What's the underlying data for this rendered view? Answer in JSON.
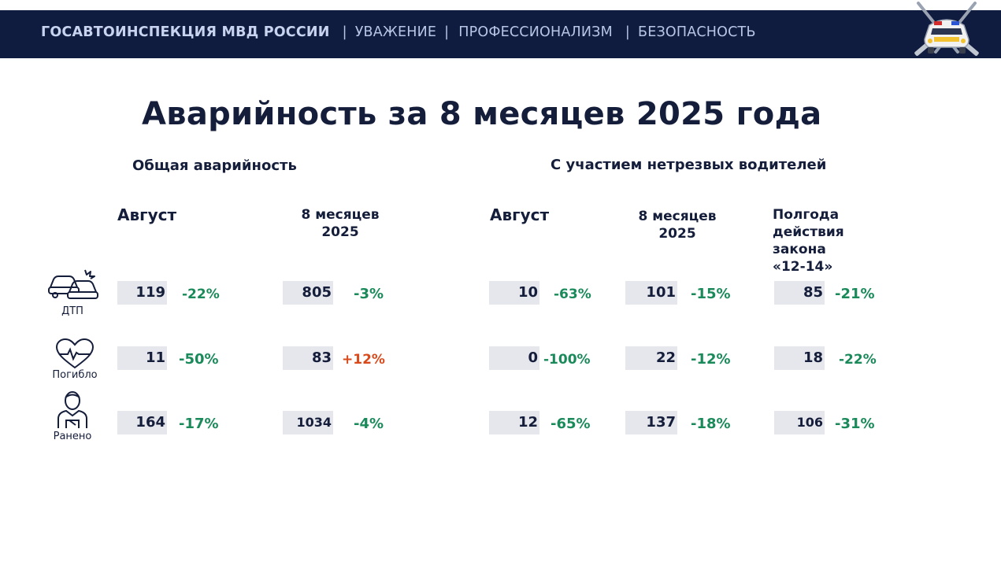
{
  "header": {
    "organization": "ГОСАВТОИНСПЕКЦИЯ МВД РОССИИ",
    "values": [
      "УВАЖЕНИЕ",
      "ПРОФЕССИОНАЛИЗМ",
      "БЕЗОПАСНОСТЬ"
    ],
    "separator": "|",
    "emblem_icon": "traffic-police-emblem-icon",
    "bar_color": "#101c3f"
  },
  "title": "Аварийность за 8 месяцев 2025 года",
  "sections": {
    "general": {
      "title": "Общая аварийность",
      "columns": [
        "Август",
        "8 месяцев\n2025"
      ]
    },
    "drunk": {
      "title": "С участием нетрезвых водителей",
      "columns": [
        "Август",
        "8 месяцев\n2025",
        "Полгода\nдействия\nзакона\n«12-14»"
      ]
    }
  },
  "rows": [
    {
      "label": "ДТП",
      "icon": "car-crash-icon",
      "values": [
        {
          "value": "119",
          "change": "-22%"
        },
        {
          "value": "805",
          "change": "-3%"
        },
        {
          "value": "10",
          "change": "-63%"
        },
        {
          "value": "101",
          "change": "-15%"
        },
        {
          "value": "85",
          "change": "-21%"
        }
      ]
    },
    {
      "label": "Погибло",
      "icon": "heart-pulse-icon",
      "values": [
        {
          "value": "11",
          "change": "-50%"
        },
        {
          "value": "83",
          "change": "+12%"
        },
        {
          "value": "0",
          "change": "-100%"
        },
        {
          "value": "22",
          "change": "-12%"
        },
        {
          "value": "18",
          "change": "-22%"
        }
      ]
    },
    {
      "label": "Ранено",
      "icon": "injured-person-icon",
      "values": [
        {
          "value": "164",
          "change": "-17%"
        },
        {
          "value": "1034",
          "change": "-4%"
        },
        {
          "value": "12",
          "change": "-65%"
        },
        {
          "value": "137",
          "change": "-18%"
        },
        {
          "value": "106",
          "change": "-31%"
        }
      ]
    }
  ],
  "colors": {
    "decrease": "#1b8a5a",
    "increase": "#d84a1b",
    "value_box": "#e6e7ec",
    "text": "#141d3a"
  }
}
